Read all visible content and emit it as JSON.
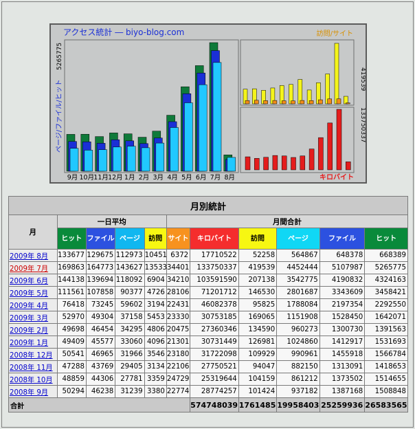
{
  "chart": {
    "title": "アクセス統計 ― biyo-blog.com",
    "ylabel_left": "ページ/ファイル/ヒット",
    "max_left": "5265775",
    "legend_top_right": "訪問/サイト",
    "max_top_right": "419539",
    "max_bottom_right": "133750337",
    "legend_bottom_right": "キロバイト",
    "colors": {
      "hit": "#0f7a3a",
      "file": "#1a2fd6",
      "page": "#21c8ff",
      "visit": "#f4f41c",
      "site": "#f28c1a",
      "kb": "#e41d1d"
    }
  },
  "chart_data": {
    "type": "bar",
    "categories": [
      "9月",
      "10月",
      "11月",
      "12月",
      "1月",
      "2月",
      "3月",
      "4月",
      "5月",
      "6月",
      "7月",
      "8月"
    ],
    "series": [
      {
        "name": "ヒット",
        "values": [
          1508848,
          1514655,
          1418653,
          1566784,
          1531693,
          1391563,
          1642071,
          2292550,
          3458421,
          4324163,
          5265775,
          668389
        ]
      },
      {
        "name": "ファイル",
        "values": [
          1387168,
          1373502,
          1313091,
          1455918,
          1412917,
          1300730,
          1528450,
          2197354,
          3343609,
          4190832,
          5107987,
          648378
        ]
      },
      {
        "name": "ページ",
        "values": [
          937182,
          861212,
          882150,
          990961,
          1024860,
          960273,
          1151908,
          1788084,
          2801687,
          3542775,
          4452444,
          564867
        ]
      },
      {
        "name": "訪問",
        "values": [
          101424,
          104159,
          94047,
          109929,
          126981,
          134590,
          169065,
          95825,
          146530,
          207138,
          419539,
          52258
        ]
      },
      {
        "name": "サイト",
        "values": [
          22774,
          24729,
          22106,
          23180,
          21301,
          20475,
          23330,
          22431,
          28106,
          34210,
          34401,
          6372
        ]
      },
      {
        "name": "キロバイト",
        "values": [
          28774257,
          25319644,
          27750521,
          31722098,
          30731449,
          27360346,
          30753185,
          46082378,
          71201712,
          103591590,
          133750337,
          17710522
        ]
      }
    ]
  },
  "table": {
    "title": "月別統計",
    "month_header": "月",
    "group_daily": "一日平均",
    "group_monthly": "月間合計",
    "daily_cols": [
      "ヒット",
      "ファイル",
      "ページ",
      "訪問"
    ],
    "monthly_cols": [
      "サイト",
      "キロバイト",
      "訪問",
      "ページ",
      "ファイル",
      "ヒット"
    ],
    "rows": [
      {
        "month": "2009年 8月",
        "current": false,
        "v": [
          "133677",
          "129675",
          "112973",
          "10451",
          "6372",
          "17710522",
          "52258",
          "564867",
          "648378",
          "668389"
        ]
      },
      {
        "month": "2009年 7月",
        "current": true,
        "v": [
          "169863",
          "164773",
          "143627",
          "13533",
          "34401",
          "133750337",
          "419539",
          "4452444",
          "5107987",
          "5265775"
        ]
      },
      {
        "month": "2009年 6月",
        "current": false,
        "v": [
          "144138",
          "139694",
          "118092",
          "6904",
          "34210",
          "103591590",
          "207138",
          "3542775",
          "4190832",
          "4324163"
        ]
      },
      {
        "month": "2009年 5月",
        "current": false,
        "v": [
          "111561",
          "107858",
          "90377",
          "4726",
          "28106",
          "71201712",
          "146530",
          "2801687",
          "3343609",
          "3458421"
        ]
      },
      {
        "month": "2009年 4月",
        "current": false,
        "v": [
          "76418",
          "73245",
          "59602",
          "3194",
          "22431",
          "46082378",
          "95825",
          "1788084",
          "2197354",
          "2292550"
        ]
      },
      {
        "month": "2009年 3月",
        "current": false,
        "v": [
          "52970",
          "49304",
          "37158",
          "5453",
          "23330",
          "30753185",
          "169065",
          "1151908",
          "1528450",
          "1642071"
        ]
      },
      {
        "month": "2009年 2月",
        "current": false,
        "v": [
          "49698",
          "46454",
          "34295",
          "4806",
          "20475",
          "27360346",
          "134590",
          "960273",
          "1300730",
          "1391563"
        ]
      },
      {
        "month": "2009年 1月",
        "current": false,
        "v": [
          "49409",
          "45577",
          "33060",
          "4096",
          "21301",
          "30731449",
          "126981",
          "1024860",
          "1412917",
          "1531693"
        ]
      },
      {
        "month": "2008年 12月",
        "current": false,
        "v": [
          "50541",
          "46965",
          "31966",
          "3546",
          "23180",
          "31722098",
          "109929",
          "990961",
          "1455918",
          "1566784"
        ]
      },
      {
        "month": "2008年 11月",
        "current": false,
        "v": [
          "47288",
          "43769",
          "29405",
          "3134",
          "22106",
          "27750521",
          "94047",
          "882150",
          "1313091",
          "1418653"
        ]
      },
      {
        "month": "2008年 10月",
        "current": false,
        "v": [
          "48859",
          "44306",
          "27781",
          "3359",
          "24729",
          "25319644",
          "104159",
          "861212",
          "1373502",
          "1514655"
        ]
      },
      {
        "month": "2008年 9月",
        "current": false,
        "v": [
          "50294",
          "46238",
          "31239",
          "3380",
          "22774",
          "28774257",
          "101424",
          "937182",
          "1387168",
          "1508848"
        ]
      }
    ],
    "total_label": "合計",
    "totals": [
      "574748039",
      "1761485",
      "19958403",
      "25259936",
      "26583565"
    ]
  }
}
